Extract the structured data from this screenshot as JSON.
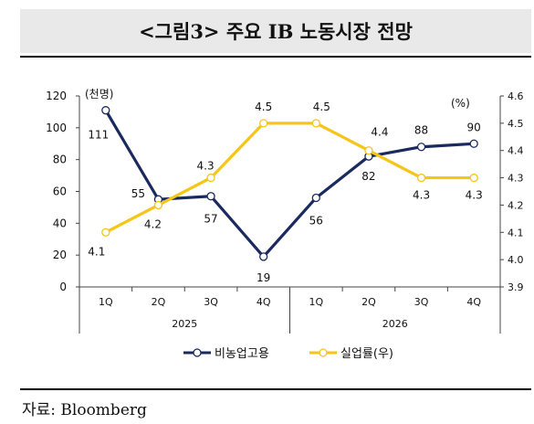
{
  "title": "<그림3> 주요 IB 노동시장 전망",
  "source": "자료: Bloomberg",
  "chart_data": {
    "type": "line",
    "categories": [
      "1Q",
      "2Q",
      "3Q",
      "4Q",
      "1Q",
      "2Q",
      "3Q",
      "4Q"
    ],
    "category_groups": [
      {
        "label": "2025",
        "count": 4
      },
      {
        "label": "2026",
        "count": 4
      }
    ],
    "y_left": {
      "unit_label": "(천명)",
      "ylim": [
        0,
        120
      ],
      "ticks": [
        "0",
        "20",
        "40",
        "60",
        "80",
        "100",
        "120"
      ]
    },
    "y_right": {
      "unit_label": "(%)",
      "ylim": [
        3.9,
        4.6
      ],
      "ticks": [
        "3.9",
        "4.0",
        "4.1",
        "4.2",
        "4.3",
        "4.4",
        "4.5",
        "4.6"
      ]
    },
    "series": [
      {
        "name": "비농업고용",
        "axis": "left",
        "color": "#1b2a5e",
        "values": [
          111,
          55,
          57,
          19,
          56,
          82,
          88,
          90
        ],
        "labels": [
          "111",
          "55",
          "57",
          "19",
          "56",
          "82",
          "88",
          "90"
        ]
      },
      {
        "name": "실업률(우)",
        "axis": "right",
        "color": "#f5c518",
        "values": [
          4.1,
          4.2,
          4.3,
          4.5,
          4.5,
          4.4,
          4.3,
          4.3
        ],
        "labels": [
          "4.1",
          "4.2",
          "4.3",
          "4.5",
          "4.5",
          "4.4",
          "4.3",
          "4.3"
        ]
      }
    ],
    "grid": false,
    "legend_position": "bottom"
  }
}
